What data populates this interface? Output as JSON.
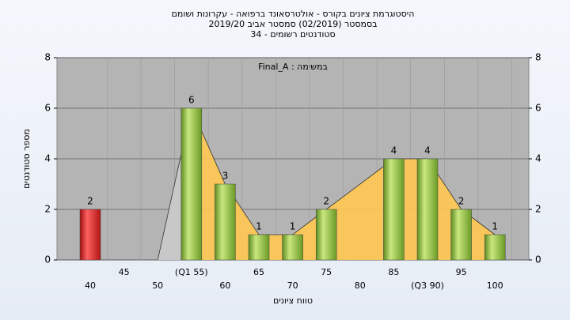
{
  "chart_data": {
    "type": "bar",
    "title": [
      "היסטוגרמת ציונים בקורס - אולטרסאונד ברפואה - עקרונות ושומם",
      "בסמסטר  (02/2019)  סמסטר אביב 2019/20",
      "סטודנטים רשומים - 34"
    ],
    "annotation": "במשימה : Final_A",
    "x_label": "טווח ציונים",
    "y_label": "מספר סטודנטים",
    "categories": [
      "40",
      "45",
      "50",
      "(Q1 55)",
      "60",
      "65",
      "70",
      "75",
      "80",
      "85",
      "(Q3 90)",
      "95",
      "100"
    ],
    "values": [
      2,
      0,
      0,
      6,
      3,
      1,
      1,
      2,
      0,
      4,
      4,
      2,
      1
    ],
    "colors": [
      "#e02020",
      "#8cc63f",
      "#8cc63f",
      "#8cc63f",
      "#8cc63f",
      "#8cc63f",
      "#8cc63f",
      "#8cc63f",
      "#8cc63f",
      "#8cc63f",
      "#8cc63f",
      "#8cc63f",
      "#8cc63f"
    ],
    "area_color": "#ffc850",
    "ylim": [
      0,
      8
    ],
    "yticks": [
      0,
      2,
      4,
      6,
      8
    ],
    "y2lim": [
      0,
      8
    ],
    "y2ticks": [
      0,
      2,
      4,
      6,
      8
    ],
    "grid": true
  }
}
